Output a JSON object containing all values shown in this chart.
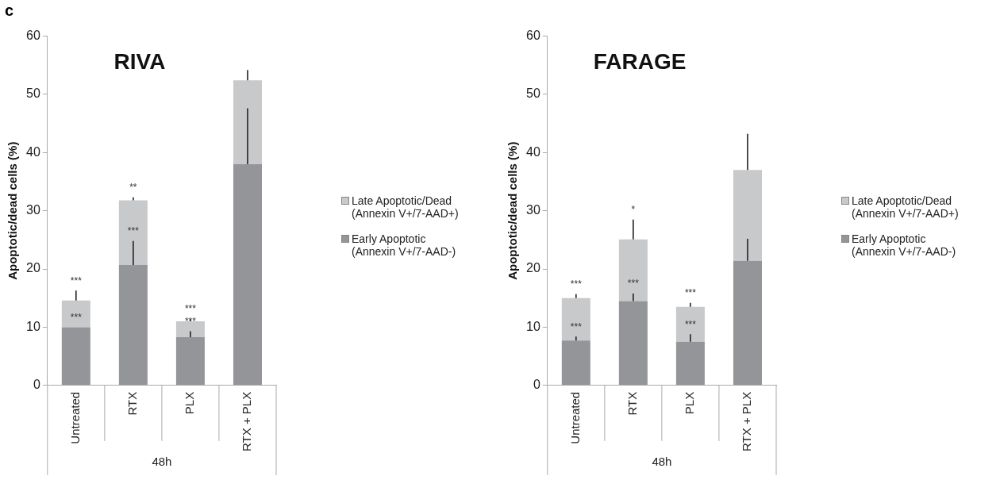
{
  "chart_data": [
    {
      "type": "bar",
      "title": "RIVA",
      "ylabel": "Apoptotic/dead cells (%)",
      "xlabel": "48h",
      "stacked": true,
      "grid": false,
      "legend": "right",
      "categories": [
        "Untreated",
        "RTX",
        "PLX",
        "RTX + PLX"
      ],
      "ylim": [
        0,
        60
      ],
      "yticks": [
        0,
        10,
        20,
        30,
        40,
        50,
        60
      ],
      "series": [
        {
          "name": "Early Apoptotic (Annexin V+/7-AAD-)",
          "color": "#939598",
          "values": [
            10,
            20.7,
            8.3,
            38
          ],
          "errors": [
            null,
            [
              20.7,
              24.8
            ],
            [
              8.3,
              9.3
            ],
            [
              38,
              47.6
            ]
          ]
        },
        {
          "name": "Late Apoptotic/Dead (Annexin V+/7-AAD+)",
          "color": "#c8c9cb",
          "values": [
            4.6,
            11.1,
            2.7,
            14.4
          ],
          "errors": [
            [
              14.6,
              16.3
            ],
            [
              31.8,
              32.3
            ],
            [
              11,
              11.4
            ],
            [
              52.4,
              54.2
            ]
          ]
        }
      ],
      "annotations": [
        "c",
        "***",
        "***",
        "**",
        "***",
        "***",
        "***"
      ]
    },
    {
      "type": "bar",
      "title": "FARAGE",
      "ylabel": "Apoptotic/dead cells (%)",
      "xlabel": "48h",
      "stacked": true,
      "grid": false,
      "legend": "right",
      "categories": [
        "Untreated",
        "RTX",
        "PLX",
        "RTX + PLX"
      ],
      "ylim": [
        0,
        60
      ],
      "yticks": [
        0,
        10,
        20,
        30,
        40,
        50,
        60
      ],
      "series": [
        {
          "name": "Early Apoptotic (Annexin V+/7-AAD-)",
          "color": "#939598",
          "values": [
            7.7,
            14.5,
            7.5,
            21.4
          ],
          "errors": [
            [
              7.7,
              8.4
            ],
            [
              14.5,
              15.8
            ],
            [
              7.5,
              8.8
            ],
            [
              21.4,
              25.2
            ]
          ]
        },
        {
          "name": "Late Apoptotic/Dead (Annexin V+/7-AAD+)",
          "color": "#c8c9cb",
          "values": [
            7.3,
            10.6,
            6.0,
            15.6
          ],
          "errors": [
            [
              15,
              15.7
            ],
            [
              25.1,
              28.5
            ],
            [
              13.5,
              14.2
            ],
            [
              37,
              43.2
            ]
          ]
        }
      ],
      "annotations": [
        "***",
        "***",
        "*",
        "***",
        "***",
        "***"
      ]
    }
  ]
}
